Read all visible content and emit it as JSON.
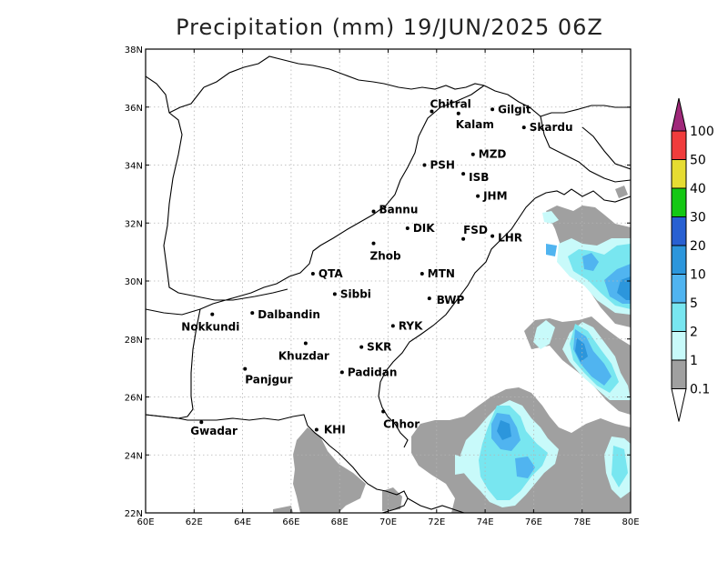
{
  "title": "Precipitation (mm) 19/JUN/2025 06Z",
  "axes": {
    "lon_labels": [
      "60E",
      "62E",
      "64E",
      "66E",
      "68E",
      "70E",
      "72E",
      "74E",
      "76E",
      "78E",
      "80E"
    ],
    "lat_labels": [
      "22N",
      "24N",
      "26N",
      "28N",
      "30N",
      "32N",
      "34N",
      "36N",
      "38N"
    ],
    "lon_range": [
      60,
      80
    ],
    "lat_range": [
      22,
      38
    ],
    "grid": true
  },
  "cities": [
    {
      "name": "Chitral",
      "lon": 71.8,
      "lat": 35.85
    },
    {
      "name": "Gilgit",
      "lon": 74.3,
      "lat": 35.92
    },
    {
      "name": "Kalam",
      "lon": 72.9,
      "lat": 35.78
    },
    {
      "name": "Skardu",
      "lon": 75.6,
      "lat": 35.3
    },
    {
      "name": "MZD",
      "lon": 73.5,
      "lat": 34.37
    },
    {
      "name": "PSH",
      "lon": 71.5,
      "lat": 34.0
    },
    {
      "name": "ISB",
      "lon": 73.1,
      "lat": 33.7
    },
    {
      "name": "JHM",
      "lon": 73.7,
      "lat": 32.93
    },
    {
      "name": "Bannu",
      "lon": 69.4,
      "lat": 32.4
    },
    {
      "name": "DIK",
      "lon": 70.8,
      "lat": 31.82
    },
    {
      "name": "FSD",
      "lon": 73.1,
      "lat": 31.45
    },
    {
      "name": "LHR",
      "lon": 74.3,
      "lat": 31.55
    },
    {
      "name": "Zhob",
      "lon": 69.4,
      "lat": 31.3
    },
    {
      "name": "QTA",
      "lon": 66.9,
      "lat": 30.25
    },
    {
      "name": "MTN",
      "lon": 71.4,
      "lat": 30.25
    },
    {
      "name": "Sibbi",
      "lon": 67.8,
      "lat": 29.55
    },
    {
      "name": "BWP",
      "lon": 71.7,
      "lat": 29.4
    },
    {
      "name": "Nokkundi",
      "lon": 62.75,
      "lat": 28.85
    },
    {
      "name": "Dalbandin",
      "lon": 64.4,
      "lat": 28.9
    },
    {
      "name": "RYK",
      "lon": 70.2,
      "lat": 28.45
    },
    {
      "name": "Khuzdar",
      "lon": 66.6,
      "lat": 27.85
    },
    {
      "name": "SKR",
      "lon": 68.9,
      "lat": 27.72
    },
    {
      "name": "Panjgur",
      "lon": 64.1,
      "lat": 26.97
    },
    {
      "name": "Padidan",
      "lon": 68.1,
      "lat": 26.85
    },
    {
      "name": "Chhor",
      "lon": 69.8,
      "lat": 25.5
    },
    {
      "name": "Gwadar",
      "lon": 62.3,
      "lat": 25.13
    },
    {
      "name": "KHI",
      "lon": 67.05,
      "lat": 24.87
    }
  ],
  "colorbar": {
    "levels": [
      "0.1",
      "1",
      "2",
      "5",
      "10",
      "20",
      "30",
      "40",
      "50",
      "100"
    ],
    "colors": [
      "#a0a0a0",
      "#c8fafa",
      "#78e6f0",
      "#50b4f0",
      "#2c96dc",
      "#2860d2",
      "#14c814",
      "#e6dc32",
      "#f03c3c",
      "#a0287a"
    ]
  },
  "colors": {
    "rain_grey": "#a0a0a0",
    "rain_light": "#c8fafa",
    "rain_cyan": "#78e6f0",
    "rain_blue": "#50b4f0",
    "rain_mid": "#2c96dc"
  }
}
